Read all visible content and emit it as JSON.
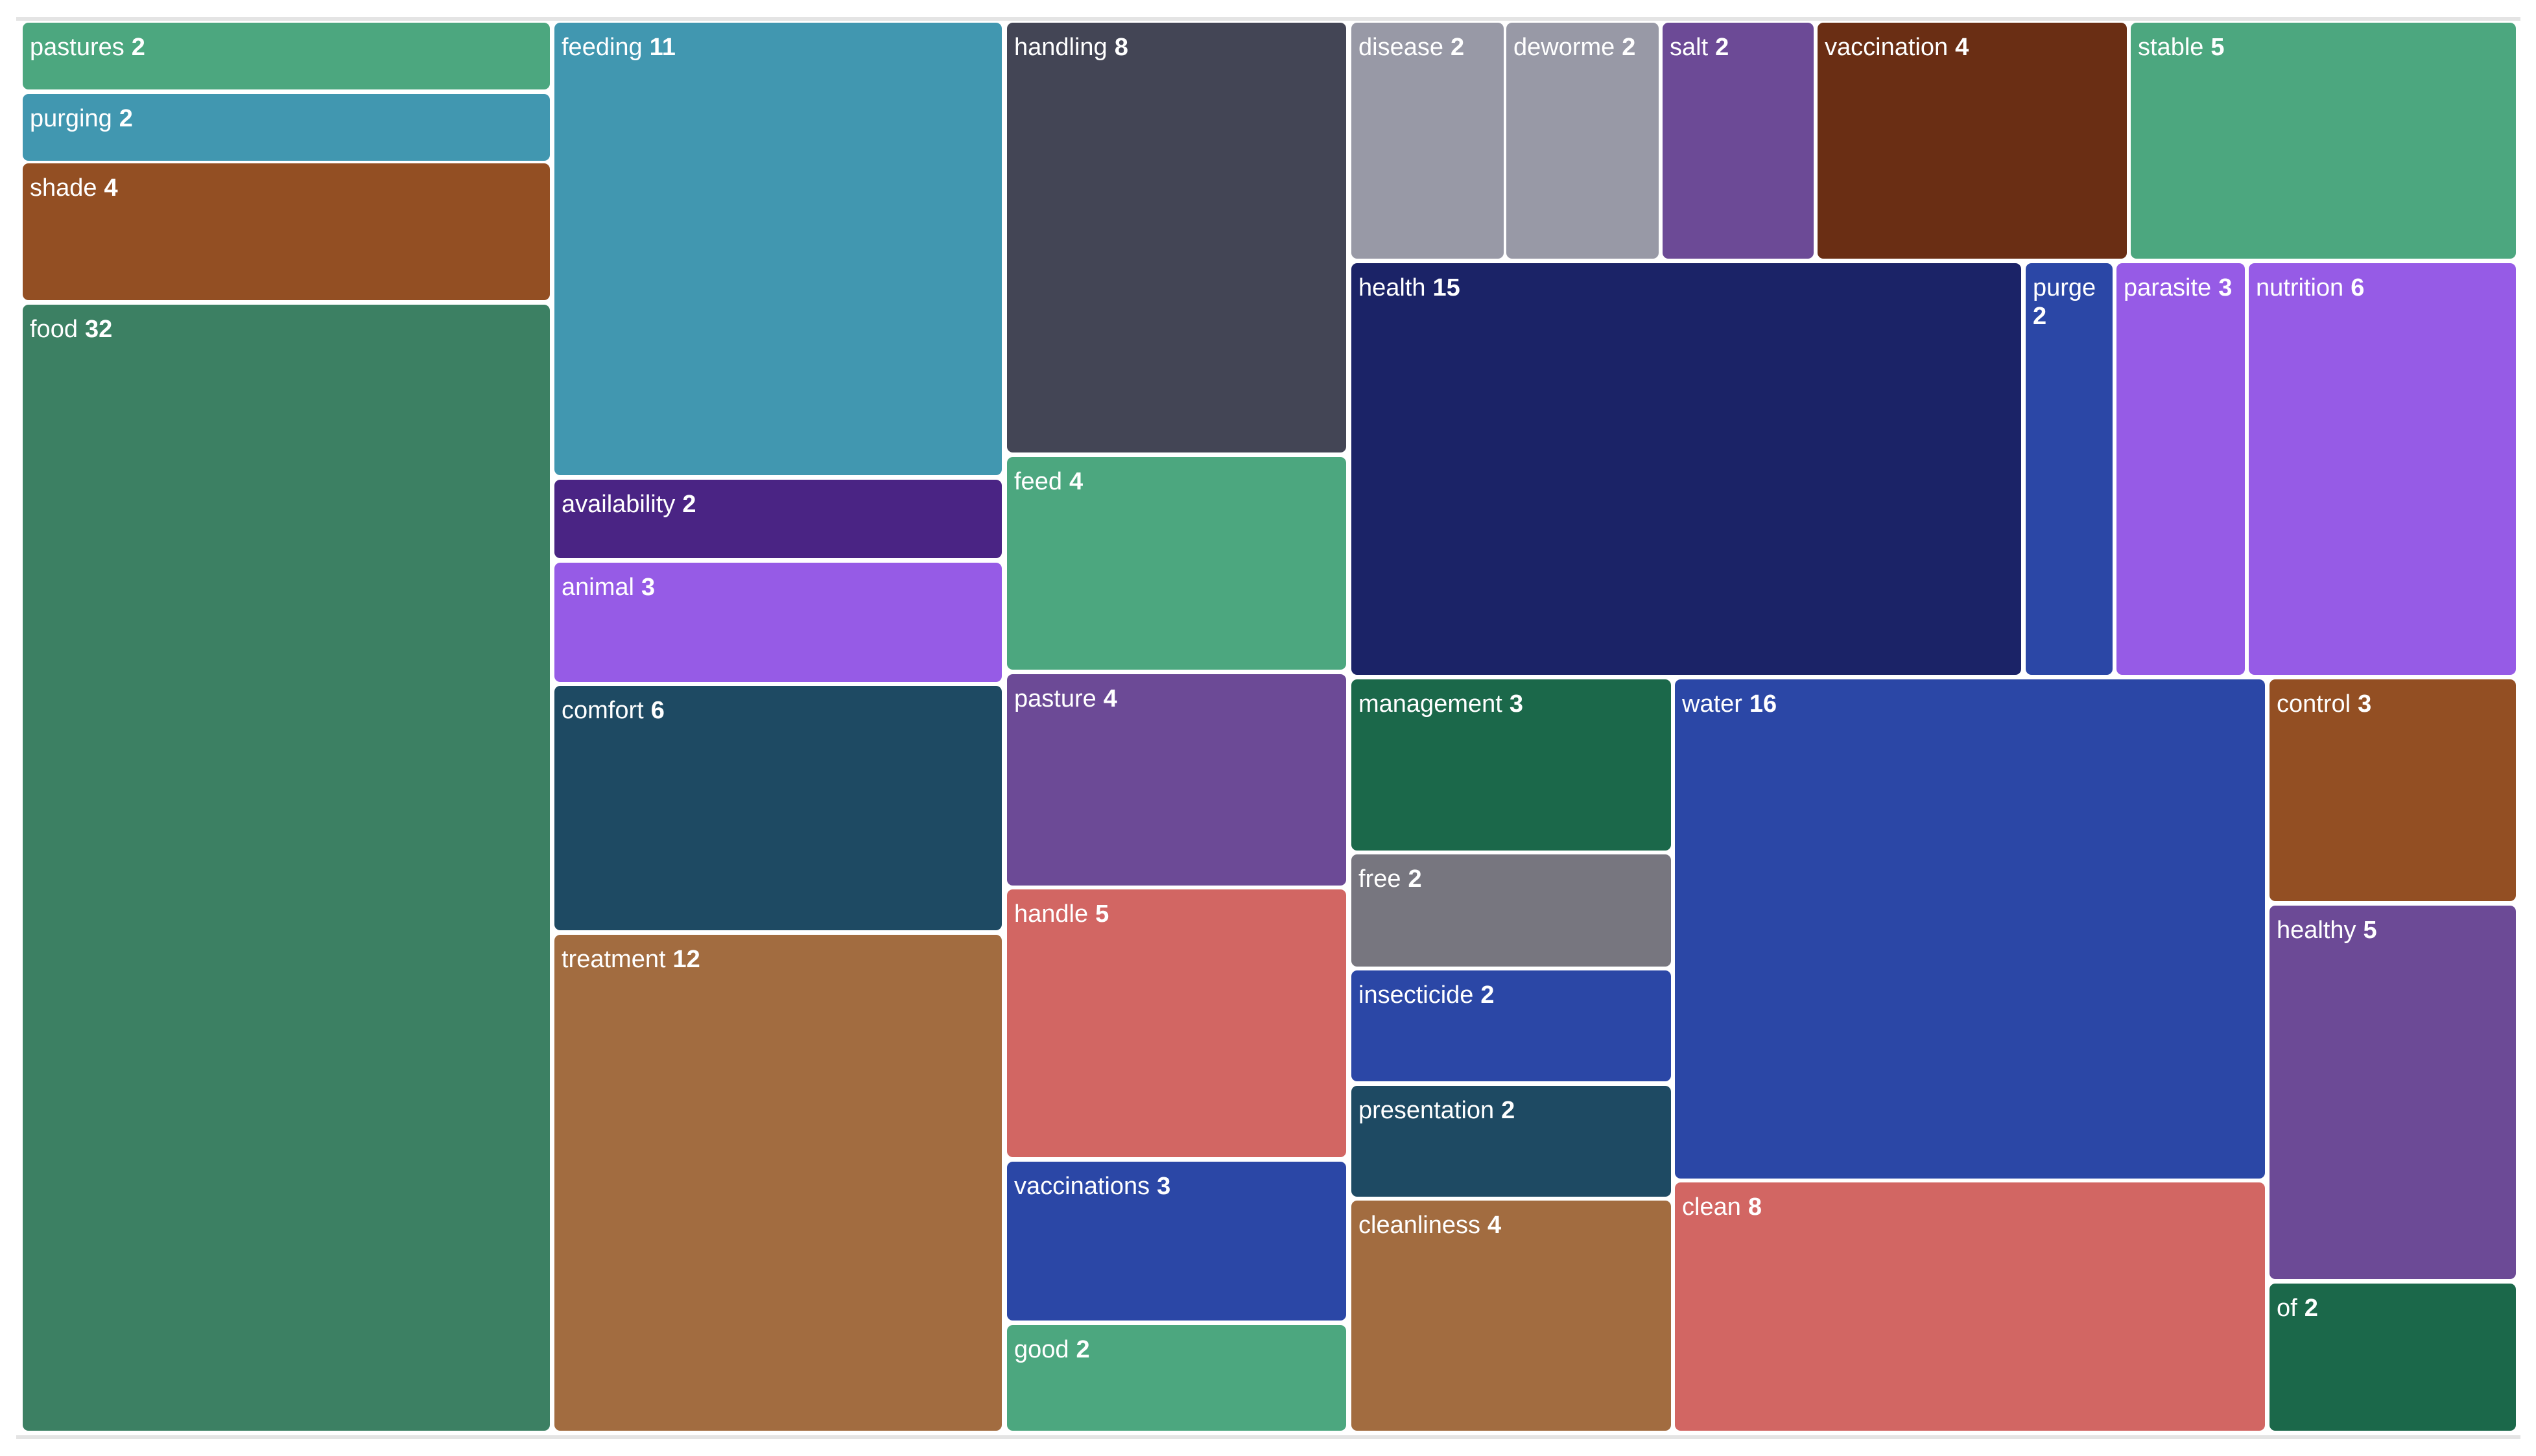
{
  "chart_data": {
    "type": "treemap",
    "items": [
      {
        "name": "pastures",
        "value": 2,
        "color": "#4ca77f"
      },
      {
        "name": "purging",
        "value": 2,
        "color": "#4197b0"
      },
      {
        "name": "shade",
        "value": 4,
        "color": "#934f23"
      },
      {
        "name": "food",
        "value": 32,
        "color": "#3c8063"
      },
      {
        "name": "feeding",
        "value": 11,
        "color": "#4197b0"
      },
      {
        "name": "availability",
        "value": 2,
        "color": "#4a2484"
      },
      {
        "name": "animal",
        "value": 3,
        "color": "#965be6"
      },
      {
        "name": "comfort",
        "value": 6,
        "color": "#1e4a63"
      },
      {
        "name": "treatment",
        "value": 12,
        "color": "#a26c40"
      },
      {
        "name": "handling",
        "value": 8,
        "color": "#434555"
      },
      {
        "name": "feed",
        "value": 4,
        "color": "#4ca77f"
      },
      {
        "name": "pasture",
        "value": 4,
        "color": "#6c4a96"
      },
      {
        "name": "handle",
        "value": 5,
        "color": "#d26663"
      },
      {
        "name": "vaccinations",
        "value": 3,
        "color": "#2b47a6"
      },
      {
        "name": "good",
        "value": 2,
        "color": "#4ca77f"
      },
      {
        "name": "disease",
        "value": 2,
        "color": "#9899a6"
      },
      {
        "name": "deworme",
        "value": 2,
        "color": "#9899a6"
      },
      {
        "name": "salt",
        "value": 2,
        "color": "#6c4a96"
      },
      {
        "name": "vaccination",
        "value": 4,
        "color": "#6a2e14"
      },
      {
        "name": "stable",
        "value": 5,
        "color": "#4ca77f"
      },
      {
        "name": "health",
        "value": 15,
        "color": "#1b2367"
      },
      {
        "name": "purge",
        "value": 2,
        "color": "#2b47a6"
      },
      {
        "name": "parasite",
        "value": 3,
        "color": "#965be6"
      },
      {
        "name": "nutrition",
        "value": 6,
        "color": "#965be6"
      },
      {
        "name": "management",
        "value": 3,
        "color": "#1b684a"
      },
      {
        "name": "free",
        "value": 2,
        "color": "#77767f"
      },
      {
        "name": "insecticide",
        "value": 2,
        "color": "#2b47a6"
      },
      {
        "name": "presentation",
        "value": 2,
        "color": "#1e4a63"
      },
      {
        "name": "cleanliness",
        "value": 4,
        "color": "#a26c40"
      },
      {
        "name": "water",
        "value": 16,
        "color": "#2b47a6"
      },
      {
        "name": "clean",
        "value": 8,
        "color": "#d26663"
      },
      {
        "name": "control",
        "value": 3,
        "color": "#934f23"
      },
      {
        "name": "healthy",
        "value": 5,
        "color": "#6c4a96"
      },
      {
        "name": "of",
        "value": 2,
        "color": "#1b684a"
      }
    ]
  }
}
